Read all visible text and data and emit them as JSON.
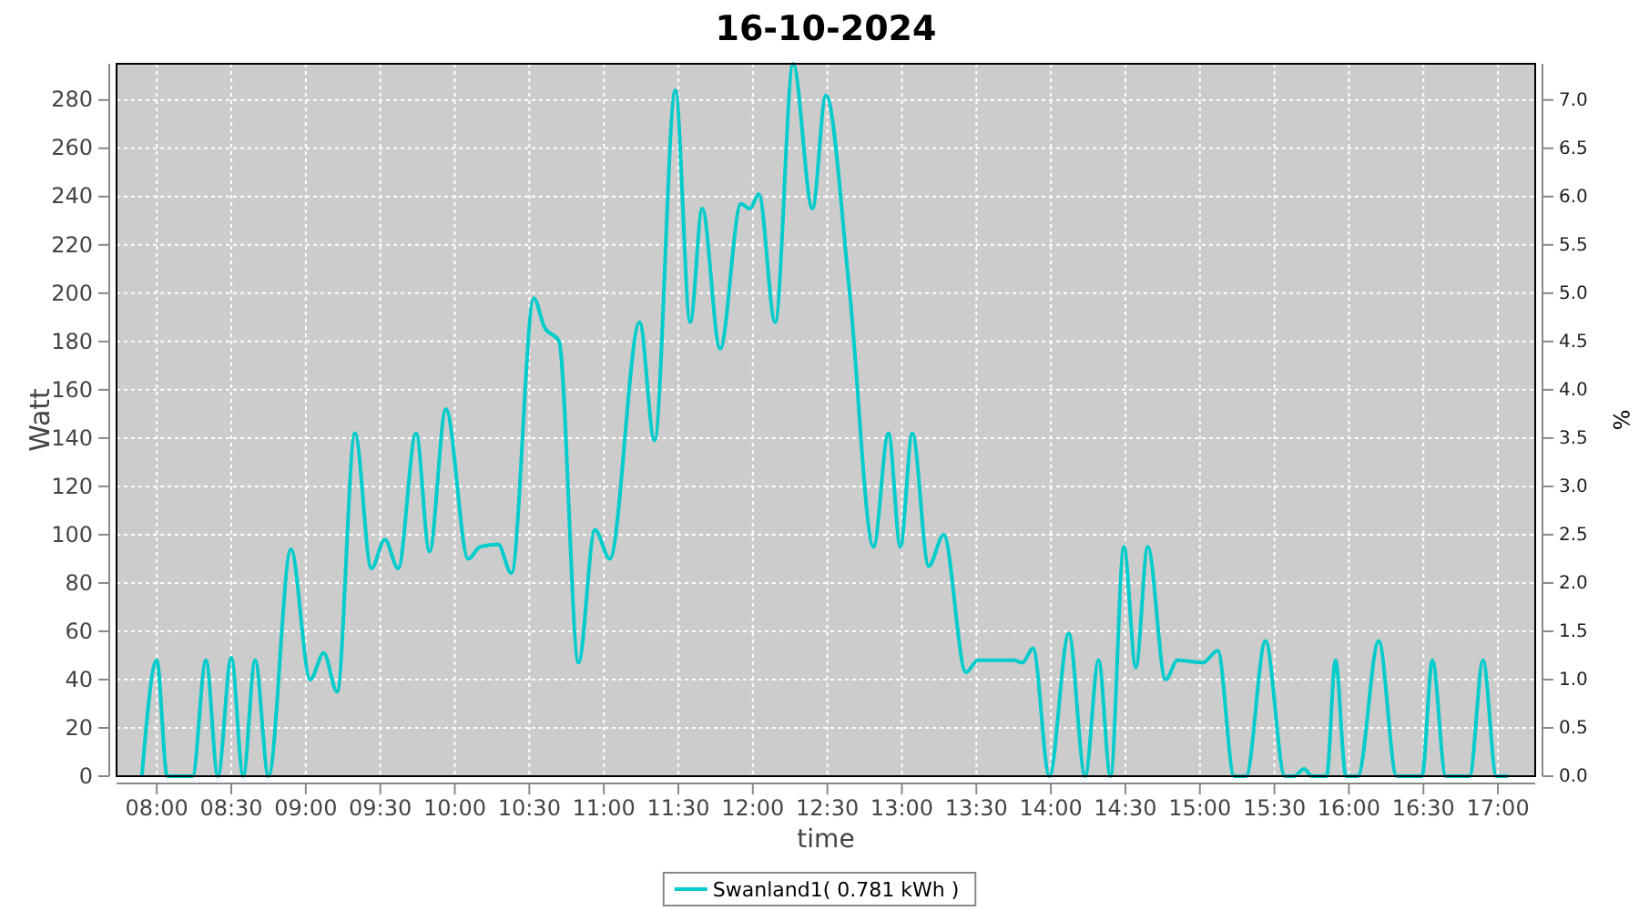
{
  "chart_data": {
    "type": "line",
    "title": "16-10-2024",
    "xlabel": "time",
    "ylabel": "Watt",
    "y2label": "%",
    "xlim": [
      7.73,
      17.25
    ],
    "xticks": [
      {
        "value": 8,
        "label": "08:00"
      },
      {
        "value": 8.5,
        "label": "08:30"
      },
      {
        "value": 9,
        "label": "09:00"
      },
      {
        "value": 9.5,
        "label": "09:30"
      },
      {
        "value": 10,
        "label": "10:00"
      },
      {
        "value": 10.5,
        "label": "10:30"
      },
      {
        "value": 11,
        "label": "11:00"
      },
      {
        "value": 11.5,
        "label": "11:30"
      },
      {
        "value": 12,
        "label": "12:00"
      },
      {
        "value": 12.5,
        "label": "12:30"
      },
      {
        "value": 13,
        "label": "13:00"
      },
      {
        "value": 13.5,
        "label": "13:30"
      },
      {
        "value": 14,
        "label": "14:00"
      },
      {
        "value": 14.5,
        "label": "14:30"
      },
      {
        "value": 15,
        "label": "15:00"
      },
      {
        "value": 15.5,
        "label": "15:30"
      },
      {
        "value": 16,
        "label": "16:00"
      },
      {
        "value": 16.5,
        "label": "16:30"
      },
      {
        "value": 17,
        "label": "17:00"
      }
    ],
    "ylim": [
      0,
      295
    ],
    "yticks": [
      0,
      20,
      40,
      60,
      80,
      100,
      120,
      140,
      160,
      180,
      200,
      220,
      240,
      260,
      280
    ],
    "y2lim": [
      0,
      7.375
    ],
    "y2ticks": [
      {
        "value": 0,
        "label": "0.0"
      },
      {
        "value": 0.5,
        "label": "0.5"
      },
      {
        "value": 1,
        "label": "1.0"
      },
      {
        "value": 1.5,
        "label": "1.5"
      },
      {
        "value": 2,
        "label": "2.0"
      },
      {
        "value": 2.5,
        "label": "2.5"
      },
      {
        "value": 3,
        "label": "3.0"
      },
      {
        "value": 3.5,
        "label": "3.5"
      },
      {
        "value": 4,
        "label": "4.0"
      },
      {
        "value": 4.5,
        "label": "4.5"
      },
      {
        "value": 5,
        "label": "5.0"
      },
      {
        "value": 5.5,
        "label": "5.5"
      },
      {
        "value": 6,
        "label": "6.0"
      },
      {
        "value": 6.5,
        "label": "6.5"
      },
      {
        "value": 7,
        "label": "7.0"
      }
    ],
    "grid": true,
    "legend": "bottom",
    "marker": "none",
    "line_style": "solid",
    "series": [
      {
        "name": "Swanland1( 0.781 kWh )",
        "color": "#00cccc",
        "x": [
          7.9,
          8.0,
          8.07,
          8.24,
          8.33,
          8.41,
          8.5,
          8.58,
          8.66,
          8.75,
          8.9,
          9.03,
          9.12,
          9.21,
          9.33,
          9.44,
          9.53,
          9.62,
          9.74,
          9.83,
          9.94,
          10.09,
          10.17,
          10.29,
          10.38,
          10.53,
          10.6,
          10.7,
          10.83,
          10.94,
          11.04,
          11.24,
          11.34,
          11.48,
          11.58,
          11.66,
          11.78,
          11.92,
          11.98,
          12.04,
          12.15,
          12.27,
          12.4,
          12.49,
          12.65,
          12.81,
          12.91,
          12.99,
          13.07,
          13.18,
          13.28,
          13.43,
          13.51,
          13.75,
          13.81,
          13.88,
          13.99,
          14.12,
          14.23,
          14.32,
          14.4,
          14.49,
          14.57,
          14.65,
          14.77,
          14.85,
          15.02,
          15.12,
          15.23,
          15.31,
          15.44,
          15.57,
          15.63,
          15.7,
          15.75,
          15.85,
          15.91,
          15.98,
          16.06,
          16.2,
          16.32,
          16.49,
          16.56,
          16.65,
          16.81,
          16.9,
          16.99,
          17.07
        ],
        "values": [
          0,
          48,
          0,
          0,
          48,
          0,
          49,
          0,
          48,
          0,
          94,
          40,
          51,
          35,
          142,
          86,
          98,
          86,
          142,
          93,
          152,
          90,
          95,
          96,
          84,
          198,
          186,
          180,
          47,
          102,
          90,
          188,
          139,
          284,
          188,
          235,
          177,
          237,
          235,
          241,
          188,
          295,
          235,
          282,
          200,
          95,
          142,
          95,
          142,
          87,
          100,
          43,
          48,
          48,
          47,
          53,
          0,
          59,
          0,
          48,
          0,
          95,
          45,
          95,
          40,
          48,
          47,
          52,
          0,
          0,
          56,
          0,
          0,
          3,
          0,
          0,
          48,
          0,
          0,
          56,
          0,
          0,
          48,
          0,
          0,
          48,
          0,
          0
        ]
      }
    ]
  }
}
